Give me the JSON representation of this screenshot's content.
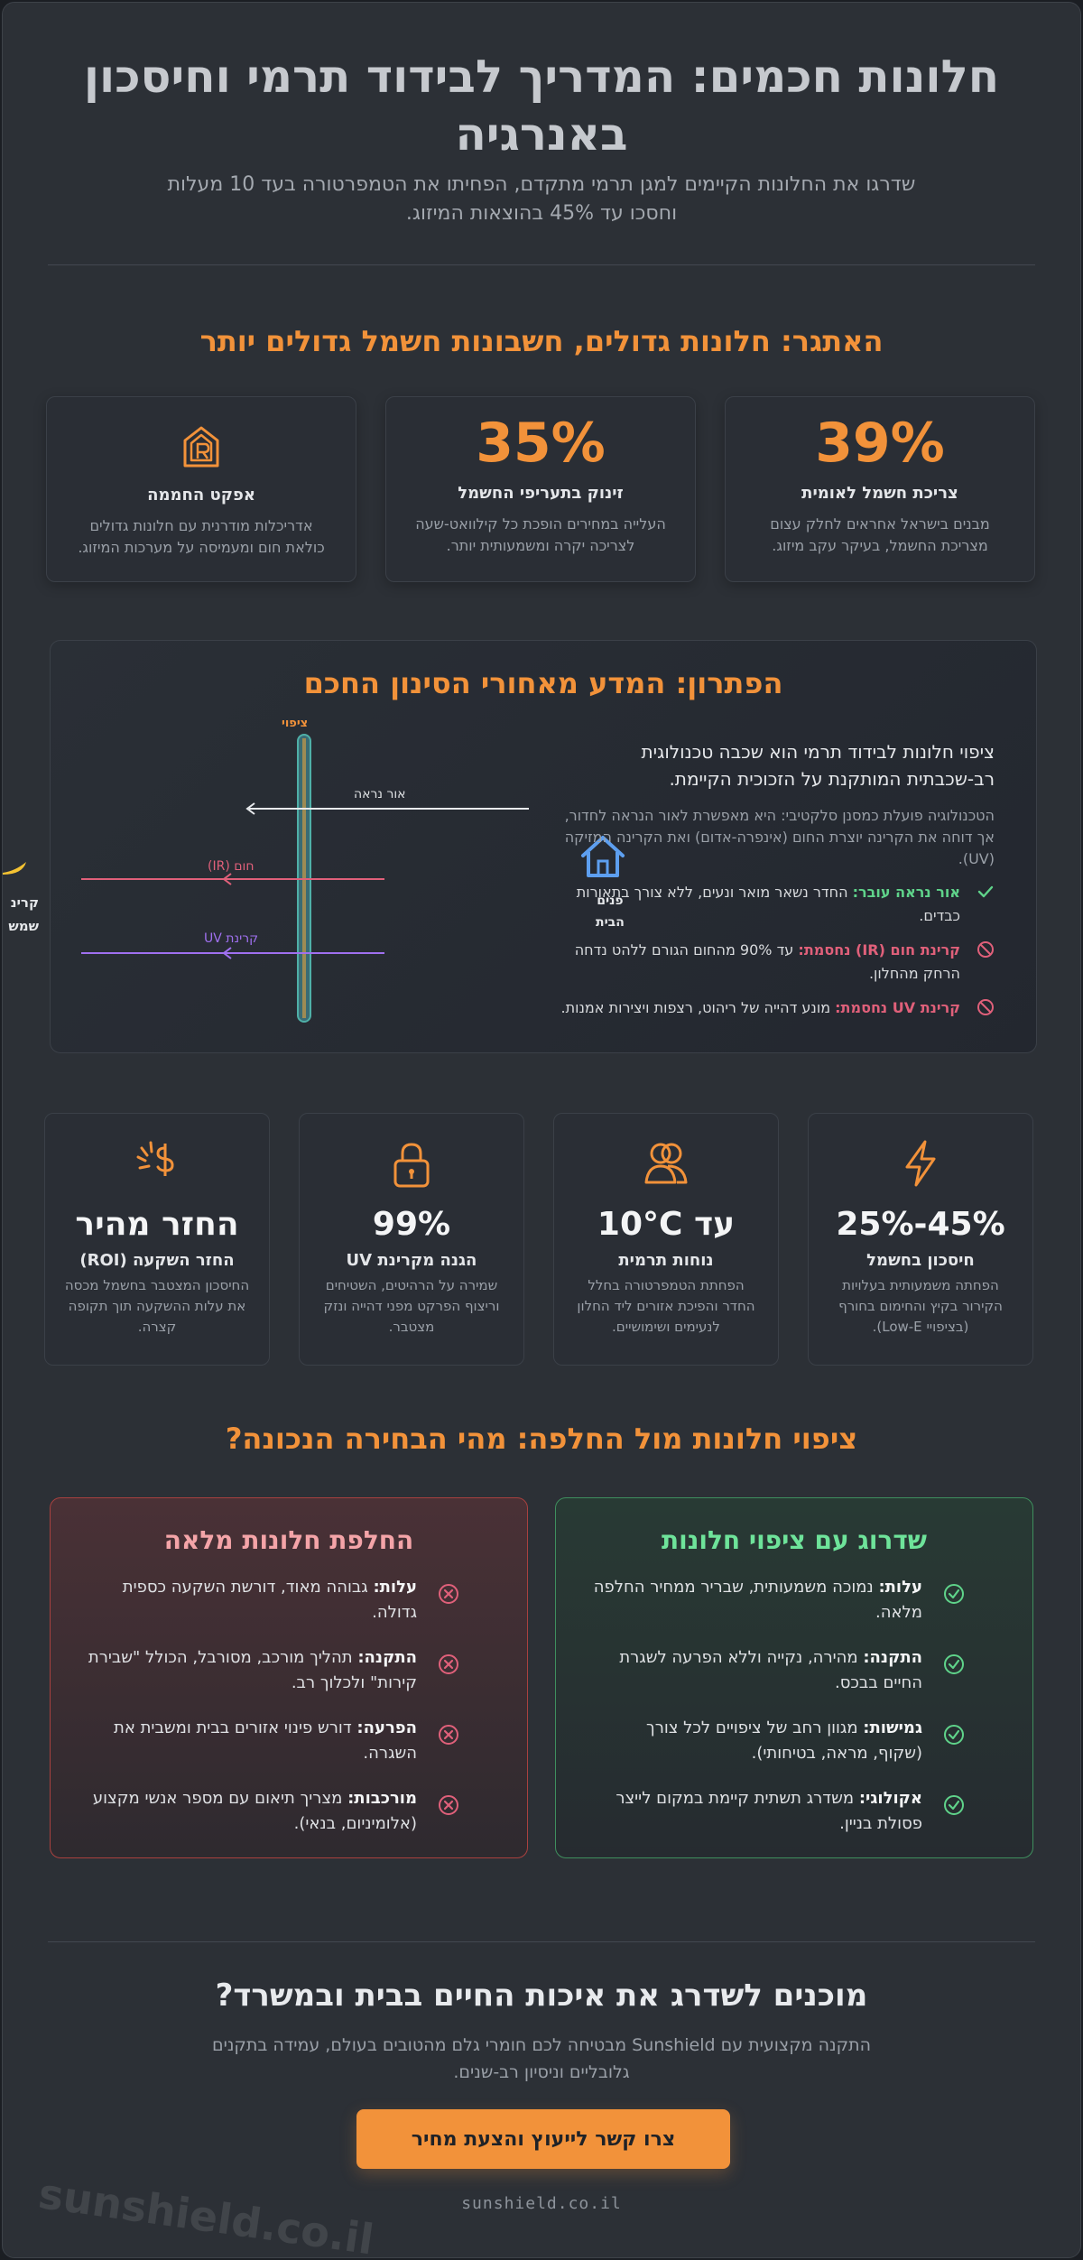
{
  "header": {
    "title": "חלונות חכמים: המדריך לבידוד תרמי וחיסכון באנרגיה",
    "subtitle": "שדרגו את החלונות הקיימים למגן תרמי מתקדם, הפחיתו את הטמפרטורה בעד 10 מעלות וחסכו עד 45% בהוצאות המיזוג."
  },
  "challenge": {
    "heading": "האתגר: חלונות גדולים, חשבונות חשמל גדולים יותר",
    "cards": [
      {
        "value": "39%",
        "title": "צריכת חשמל לאומית",
        "desc": "מבנים בישראל אחראים לחלק עצום מצריכת החשמל, בעיקר עקב מיזוג."
      },
      {
        "value": "35%",
        "title": "זינוק בתעריפי החשמל",
        "desc": "העלייה במחירים הופכת כל קילוואט-שעה לצריכה יקרה ומשמעותית יותר."
      },
      {
        "icon": "greenhouse-house-icon",
        "title": "אפקט החממה",
        "desc": "אדריכלות מודרנית עם חלונות גדולים כולאת חום ומעמיסה על מערכות המיזוג."
      }
    ]
  },
  "solution": {
    "heading": "הפתרון: המדע מאחורי הסינון החכם",
    "lead": "ציפוי חלונות לבידוד תרמי הוא שכבה טכנולוגית רב-שכבתית המותקנת על הזכוכית הקיימת.",
    "desc": "הטכנולוגיה פועלת כמסנן סלקטיבי: היא מאפשרת לאור הנראה לחדור, אך דוחה את הקרינה יוצרת החום (אינפרה-אדום) ואת הקרינה המזיקה (UV).",
    "features": [
      {
        "label": "אור נראה עובר:",
        "text": "החדר נשאר מואר ונעים, ללא צורך בתאורות כבדים.",
        "color": "#5fd38a",
        "icon": "check-icon"
      },
      {
        "label": "קרינת חום (IR) נחסמת:",
        "text": "עד 90% מהחום הגורם ללהט נדחה הרחק מהחלון.",
        "color": "#e0607a",
        "icon": "block-icon"
      },
      {
        "label": "קרינת UV נחסמת:",
        "text": "מונע דהייה של ריהוט, רצפות ויצירות אמנות.",
        "color": "#e0607a",
        "icon": "block-icon"
      }
    ],
    "diagram": {
      "film_label": "ציפוי",
      "visible_label": "אור נראה",
      "ir_label": "חום (IR)",
      "uv_label": "קרינת UV",
      "home_label_1": "פנים",
      "home_label_2": "הבית",
      "sun_label_1": "קרינ",
      "sun_label_2": "שמש"
    }
  },
  "metrics": [
    {
      "icon": "lightning-icon",
      "value": "25%-45%",
      "label": "חיסכון בחשמל",
      "desc": "הפחתה משמעותית בעלויות הקירור בקיץ והחימום בחורף (בציפויי Low-E)."
    },
    {
      "icon": "comfort-people-icon",
      "value": "עד 10°C",
      "label": "נוחות תרמית",
      "desc": "הפחתת הטמפרטורה בחלל החדר והפיכת אזורים ליד החלון לנעימים ושימושיים."
    },
    {
      "icon": "lock-icon",
      "value": "99%",
      "label": "הגנה מקרינת UV",
      "desc": "שמירה על הרהיטים, השטיחים וריצוף הפרקט מפני דהייה ונזק מצטבר."
    },
    {
      "icon": "money-hand-icon",
      "value": "החזר מהיר",
      "label": "החזר השקעה (ROI)",
      "desc": "החיסכון המצטבר בחשמל מכסה את עלות ההשקעה תוך תקופה קצרה."
    }
  ],
  "comparison": {
    "heading": "ציפוי חלונות מול החלפה: מהי הבחירה הנכונה?",
    "coating": {
      "title": "שדרוג עם ציפוי חלונות",
      "rows": [
        {
          "label": "עלות:",
          "text": "נמוכה משמעותית, שבריר ממחיר החלפה מלאה."
        },
        {
          "label": "התקנה:",
          "text": "מהירה, נקייה וללא הפרעה לשגרת החיים בבכס."
        },
        {
          "label": "גמישות:",
          "text": "מגוון רחב של ציפויים לכל צורך (שקוף, מראה, בטיחותי)."
        },
        {
          "label": "אקולוגי:",
          "text": "משדרג תשתית קיימת במקום לייצר פסולת בניין."
        }
      ]
    },
    "replacement": {
      "title": "החלפת חלונות מלאה",
      "rows": [
        {
          "label": "עלות:",
          "text": "גבוהה מאוד, דורשת השקעה כספית גדולה."
        },
        {
          "label": "התקנה:",
          "text": "תהליך מורכב, מסורבל, הכולל \"שבירת קירות\" ולכלוך רב."
        },
        {
          "label": "הפרעה:",
          "text": "דורש פינוי אזורים בבית ומשבית את השגרה."
        },
        {
          "label": "מורכבות:",
          "text": "מצריך תיאום עם מספר אנשי מקצוע (אלומיניום, בנאי)."
        }
      ]
    }
  },
  "cta": {
    "title": "מוכנים לשדרג את איכות החיים בבית ובמשרד?",
    "desc": "התקנה מקצועית עם Sunshield מבטיחה לכם חומרי גלם מהטובים בעולם, עמידה בתקנים גלובליים וניסיון רב-שנים.",
    "button": "צרו קשר לייעוץ והצעת מחיר",
    "site": "sunshield.co.il",
    "watermark": "sunshield.co.il"
  },
  "colors": {
    "accent": "#f2923a",
    "green": "#5fd38a",
    "red": "#e0607a",
    "home_blue": "#5d9ff0",
    "uv_purple": "#a070f0"
  }
}
